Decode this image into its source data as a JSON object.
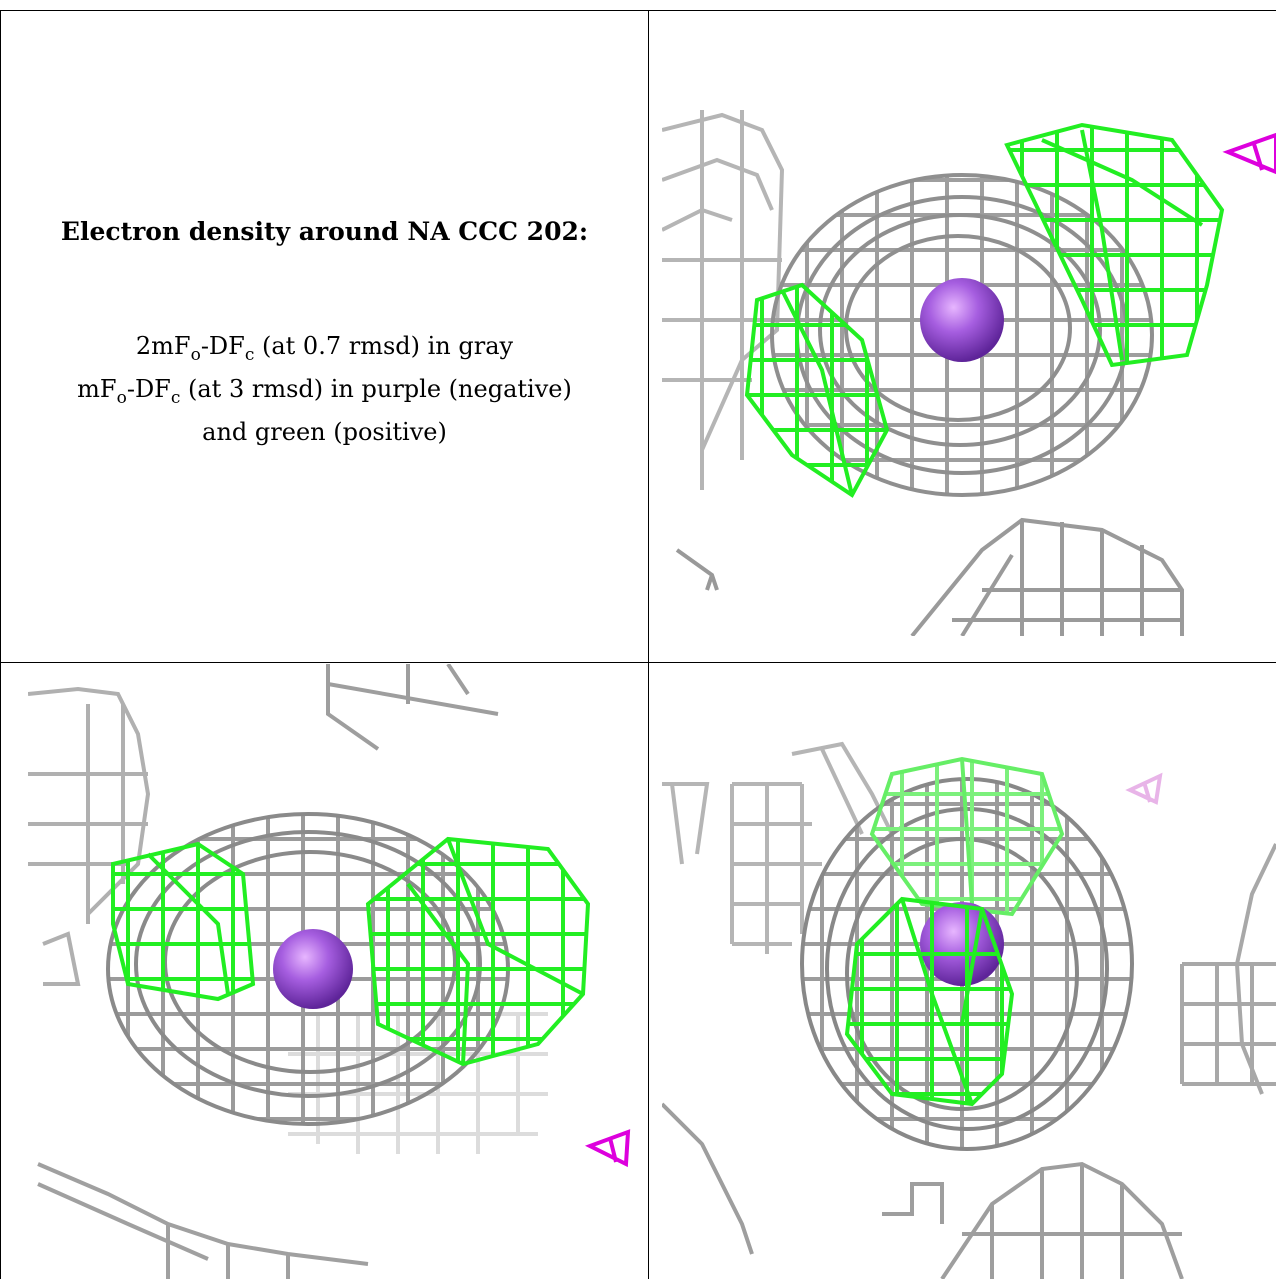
{
  "caption": {
    "title": "Electron density around NA CCC 202:",
    "line1": {
      "prefix": "2mF",
      "sub1": "o",
      "mid": "-DF",
      "sub2": "c",
      "suffix": " (at 0.7 rmsd) in gray"
    },
    "line2": {
      "prefix": "mF",
      "sub1": "o",
      "mid": "-DF",
      "sub2": "c",
      "suffix": " (at 3 rmsd) in purple (negative)"
    },
    "line3": "and green (positive)"
  },
  "colors": {
    "map_2fofc": "#a9a9a9",
    "map_fofc_positive": "#22ee22",
    "map_fofc_negative": "#dd00dd",
    "atom_na": "#8a3fd1"
  },
  "panels": [
    {
      "name": "view-top-right",
      "atom": "sodium-atom",
      "icons": [
        "negative-density-marker-icon"
      ]
    },
    {
      "name": "view-bottom-left",
      "atom": "sodium-atom",
      "icons": [
        "negative-density-marker-icon"
      ]
    },
    {
      "name": "view-bottom-right",
      "atom": "sodium-atom",
      "icons": [
        "negative-density-marker-icon"
      ]
    }
  ]
}
